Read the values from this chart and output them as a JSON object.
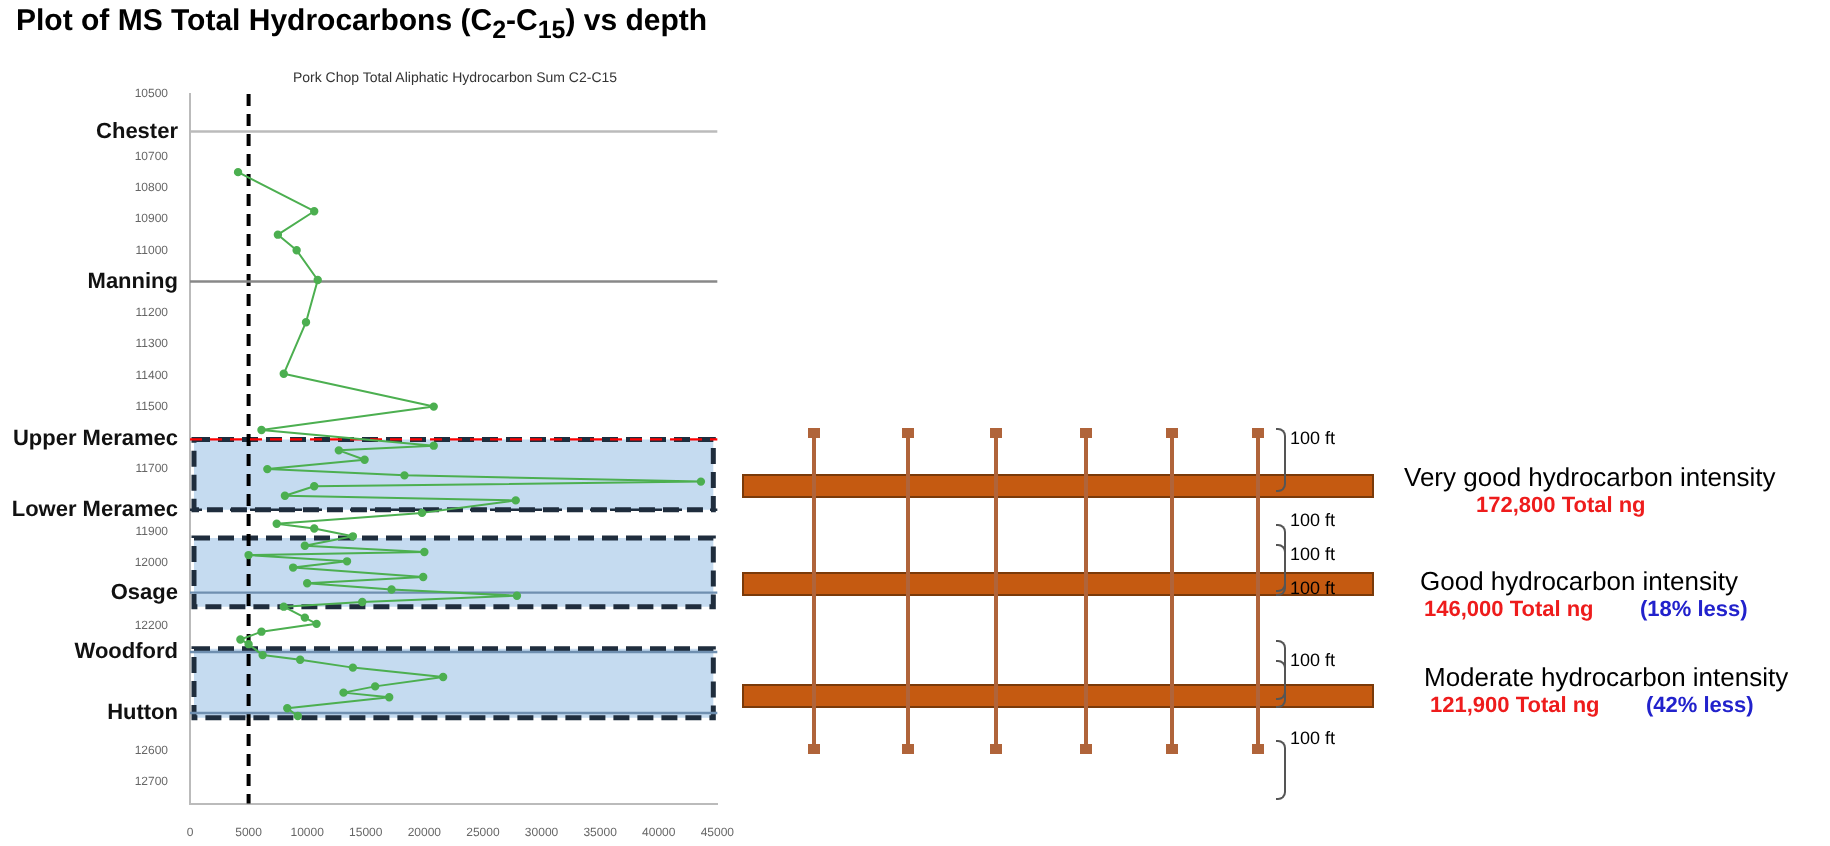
{
  "chart_data": {
    "type": "line",
    "title": "Plot of MS Total Hydrocarbons (C$_{2}$-C$_{15}$) vs depth",
    "subtitle": "Pork Chop Total Aliphatic Hydrocarbon Sum C2-C15",
    "x": [
      4100,
      10600,
      7500,
      9100,
      10900,
      9900,
      8000,
      20800,
      6100,
      20800,
      12700,
      14900,
      6600,
      18300,
      43600,
      10600,
      8100,
      27800,
      19800,
      7400,
      10600,
      13900,
      9800,
      20000,
      5000,
      13400,
      8800,
      19900,
      10000,
      17200,
      27900,
      14700,
      8000,
      9800,
      10800,
      6100,
      4300,
      5000,
      6200,
      9400,
      13900,
      21600,
      15800,
      13100,
      17000,
      8300,
      9200
    ],
    "series": [
      {
        "color": "#4caf50",
        "values": [
          10750,
          10875,
          10950,
          11000,
          11095,
          11230,
          11395,
          11500,
          11575,
          11625,
          11640,
          11670,
          11700,
          11720,
          11740,
          11755,
          11785,
          11800,
          11840,
          11875,
          11890,
          11915,
          11945,
          11965,
          11975,
          11995,
          12015,
          12045,
          12065,
          12085,
          12105,
          12125,
          12140,
          12175,
          12195,
          12220,
          12245,
          12260,
          12295,
          12310,
          12335,
          12365,
          12395,
          12415,
          12430,
          12465,
          12490
        ]
      }
    ],
    "marker": "circle",
    "line_style": "solid",
    "xlim": [
      0,
      45000
    ],
    "xticks": [
      0,
      5000,
      10000,
      15000,
      20000,
      25000,
      30000,
      35000,
      40000,
      45000
    ],
    "ylim": [
      12770,
      10500
    ],
    "yticks": [
      10500,
      10700,
      10800,
      10900,
      11000,
      11200,
      11300,
      11400,
      11500,
      11700,
      11900,
      12000,
      12200,
      12600,
      12700
    ],
    "ref_lines": [
      {
        "axis": "x",
        "value": 5000,
        "color": "#000000",
        "line_style": "dashed"
      },
      {
        "axis": "y",
        "value": 10620,
        "label": "Chester",
        "color": "#bbbbbb"
      },
      {
        "axis": "y",
        "value": 11100,
        "label": "Manning",
        "color": "#888888"
      },
      {
        "axis": "y",
        "value": 11605,
        "label": "Upper Meramec",
        "color": "#ff0000",
        "line_style": "dashed"
      },
      {
        "axis": "y",
        "value": 11830,
        "label": "Lower Meramec",
        "color": "#1f2d3d",
        "line_style": "dashed"
      },
      {
        "axis": "y",
        "value": 12095,
        "label": "Osage",
        "color": "#6f8fb0"
      },
      {
        "axis": "y",
        "value": 12285,
        "label": "Woodford",
        "color": "#6f8fb0"
      },
      {
        "axis": "y",
        "value": 12480,
        "label": "Hutton",
        "color": "#6f8fb0"
      }
    ],
    "bands": [
      {
        "axis": "y",
        "from": 11605,
        "to": 11830,
        "color": "#c5dbf0"
      },
      {
        "axis": "y",
        "from": 11920,
        "to": 12140,
        "color": "#c5dbf0"
      },
      {
        "axis": "y",
        "from": 12275,
        "to": 12495,
        "color": "#c5dbf0"
      }
    ],
    "annotations": [
      "100 ft",
      "100 ft",
      "100 ft",
      "100 ft",
      "100 ft",
      "100 ft",
      "Very good hydrocarbon intensity",
      "172,800 Total ng",
      "Good hydrocarbon intensity",
      "146,000 Total ng",
      "(18% less)",
      "Moderate hydrocarbon intensity",
      "121,900 Total ng",
      "(42% less)"
    ]
  }
}
